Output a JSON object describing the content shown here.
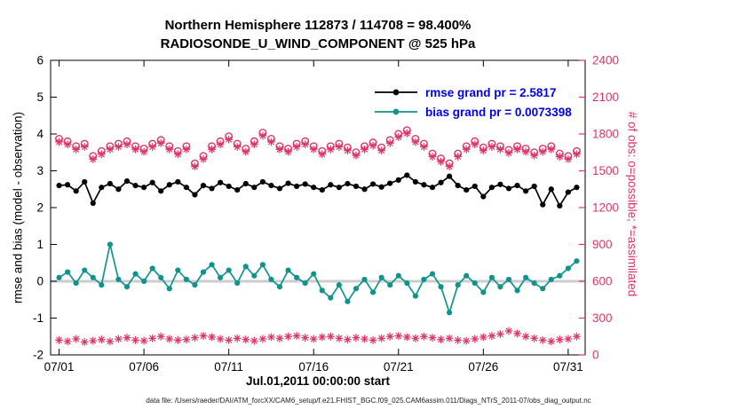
{
  "figure": {
    "title_line1": "Northern Hemisphere 112873 / 114708 = 98.400%",
    "title_line2": "RADIOSONDE_U_WIND_COMPONENT @ 525 hPa",
    "caption": "data file: /Users/raeder/DAI/ATM_forcXX/CAM6_setup/f.e21.FHIST_BGC.f09_025.CAM6assim.011/Diags_NTrS_2011-07/obs_diag_output.nc"
  },
  "chart_data": {
    "type": "line",
    "title": "Northern Hemisphere 112873 / 114708 = 98.400%",
    "subtitle": "RADIOSONDE_U_WIND_COMPONENT @ 525 hPa",
    "x_label": "Jul.01,2011 00:00:00 start",
    "x_axis": {
      "range": [
        0.5,
        32
      ],
      "ticks": [
        1,
        6,
        11,
        16,
        21,
        26,
        31
      ],
      "tick_labels": [
        "07/01",
        "07/06",
        "07/11",
        "07/16",
        "07/21",
        "07/26",
        "07/31"
      ]
    },
    "y_left": {
      "label": "rmse and bias (model - observation)",
      "range": [
        -2,
        6
      ],
      "ticks": [
        -2,
        -1,
        0,
        1,
        2,
        3,
        4,
        5,
        6
      ]
    },
    "y_right": {
      "label": "# of obs: o=possible; *=assimilated",
      "range": [
        0,
        2400
      ],
      "ticks": [
        0,
        300,
        600,
        900,
        1200,
        1500,
        1800,
        2100,
        2400
      ],
      "color": "#dd3468"
    },
    "legend": [
      {
        "label": "rmse grand pr = 2.5817",
        "color": "#000000"
      },
      {
        "label": "bias grand pr = 0.0073398",
        "color": "#10938c"
      }
    ],
    "legend_text_color": "#0000ee",
    "zero_line_color": "#cccccc",
    "x": [
      1,
      1.5,
      2,
      2.5,
      3,
      3.5,
      4,
      4.5,
      5,
      5.5,
      6,
      6.5,
      7,
      7.5,
      8,
      8.5,
      9,
      9.5,
      10,
      10.5,
      11,
      11.5,
      12,
      12.5,
      13,
      13.5,
      14,
      14.5,
      15,
      15.5,
      16,
      16.5,
      17,
      17.5,
      18,
      18.5,
      19,
      19.5,
      20,
      20.5,
      21,
      21.5,
      22,
      22.5,
      23,
      23.5,
      24,
      24.5,
      25,
      25.5,
      26,
      26.5,
      27,
      27.5,
      28,
      28.5,
      29,
      29.5,
      30,
      30.5,
      31,
      31.5
    ],
    "series": [
      {
        "name": "rmse",
        "axis": "left",
        "color": "#000000",
        "marker": "circle-filled",
        "line": true,
        "values": [
          2.6,
          2.62,
          2.45,
          2.7,
          2.12,
          2.55,
          2.65,
          2.5,
          2.72,
          2.6,
          2.55,
          2.68,
          2.45,
          2.62,
          2.7,
          2.55,
          2.35,
          2.6,
          2.52,
          2.68,
          2.58,
          2.48,
          2.65,
          2.55,
          2.7,
          2.6,
          2.52,
          2.66,
          2.58,
          2.64,
          2.55,
          2.48,
          2.62,
          2.55,
          2.65,
          2.58,
          2.5,
          2.64,
          2.56,
          2.66,
          2.75,
          2.88,
          2.7,
          2.62,
          2.55,
          2.68,
          2.85,
          2.6,
          2.48,
          2.58,
          2.3,
          2.55,
          2.63,
          2.52,
          2.6,
          2.45,
          2.58,
          2.08,
          2.5,
          2.05,
          2.42,
          2.55
        ]
      },
      {
        "name": "bias",
        "axis": "left",
        "color": "#10938c",
        "marker": "circle-filled",
        "line": true,
        "values": [
          0.1,
          0.25,
          -0.05,
          0.3,
          0.1,
          -0.1,
          1.0,
          0.05,
          -0.15,
          0.2,
          0.0,
          0.35,
          0.1,
          -0.2,
          0.3,
          0.05,
          -0.1,
          0.25,
          0.45,
          0.1,
          0.3,
          -0.05,
          0.4,
          0.15,
          0.45,
          0.05,
          -0.15,
          0.3,
          0.1,
          -0.05,
          0.2,
          -0.25,
          -0.45,
          -0.1,
          -0.55,
          -0.2,
          0.05,
          -0.3,
          0.1,
          -0.1,
          0.15,
          -0.05,
          -0.4,
          0.05,
          0.2,
          -0.15,
          -0.85,
          -0.1,
          0.15,
          -0.05,
          -0.3,
          0.1,
          -0.15,
          0.05,
          -0.25,
          0.1,
          -0.05,
          -0.2,
          0.05,
          0.15,
          0.35,
          0.55
        ]
      },
      {
        "name": "obs-possible",
        "axis": "right",
        "color": "#dd3468",
        "marker": "circle-open",
        "line": false,
        "values": [
          1760,
          1740,
          1700,
          1720,
          1620,
          1660,
          1700,
          1720,
          1740,
          1700,
          1680,
          1720,
          1750,
          1700,
          1660,
          1700,
          1560,
          1620,
          1700,
          1740,
          1780,
          1720,
          1680,
          1740,
          1810,
          1760,
          1700,
          1680,
          1720,
          1740,
          1700,
          1660,
          1700,
          1720,
          1690,
          1650,
          1700,
          1730,
          1690,
          1750,
          1800,
          1830,
          1760,
          1720,
          1640,
          1600,
          1560,
          1640,
          1700,
          1740,
          1690,
          1720,
          1700,
          1670,
          1700,
          1680,
          1650,
          1680,
          1700,
          1640,
          1620,
          1660
        ]
      },
      {
        "name": "obs-assimilated",
        "axis": "right",
        "color": "#dd3468",
        "marker": "asterisk",
        "line": false,
        "values": [
          1735,
          1715,
          1675,
          1695,
          1595,
          1635,
          1675,
          1695,
          1715,
          1675,
          1655,
          1695,
          1725,
          1675,
          1635,
          1675,
          1535,
          1595,
          1675,
          1715,
          1755,
          1695,
          1655,
          1715,
          1785,
          1735,
          1675,
          1655,
          1695,
          1715,
          1675,
          1635,
          1675,
          1695,
          1665,
          1625,
          1675,
          1705,
          1665,
          1725,
          1775,
          1805,
          1735,
          1695,
          1615,
          1575,
          1535,
          1615,
          1675,
          1715,
          1665,
          1695,
          1675,
          1645,
          1675,
          1655,
          1625,
          1655,
          1675,
          1615,
          1595,
          1635
        ]
      },
      {
        "name": "obs-count-lower",
        "axis": "right",
        "color": "#dd3468",
        "marker": "asterisk",
        "line": false,
        "values": [
          120,
          110,
          130,
          105,
          115,
          125,
          110,
          130,
          140,
          120,
          115,
          135,
          150,
          130,
          120,
          125,
          140,
          155,
          145,
          130,
          120,
          135,
          125,
          115,
          130,
          145,
          135,
          150,
          155,
          140,
          130,
          145,
          150,
          135,
          125,
          140,
          130,
          120,
          135,
          150,
          155,
          145,
          135,
          150,
          140,
          125,
          135,
          120,
          115,
          130,
          145,
          155,
          170,
          195,
          175,
          150,
          135,
          120,
          110,
          125,
          130,
          150
        ]
      }
    ]
  }
}
